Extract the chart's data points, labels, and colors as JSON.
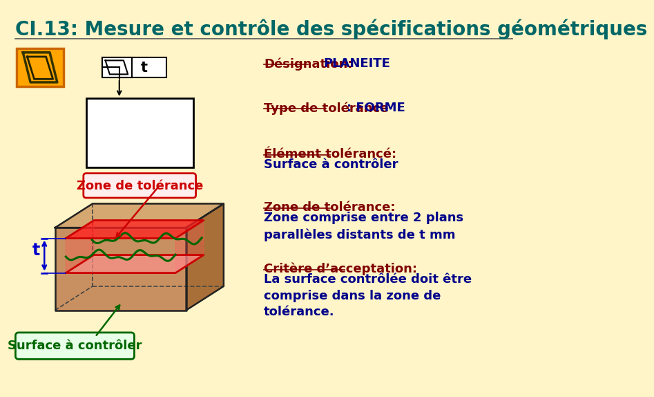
{
  "bg_color": "#FFF5C8",
  "title": "CI.13: Mesure et contrôle des spécifications géométriques",
  "title_color": "#006666",
  "title_fontsize": 20,
  "label_color": "#800000",
  "value_color": "#00008B",
  "text_fontsize": 13,
  "zone_tolerance_box_text": "Zone de tolérance",
  "zone_tolerance_box_color": "#CC0000",
  "zone_tolerance_box_bg": "#FFEEEE",
  "surface_box_text": "Surface à contrôler",
  "surface_box_color": "#006600",
  "surface_box_bg": "#E8FFE8"
}
